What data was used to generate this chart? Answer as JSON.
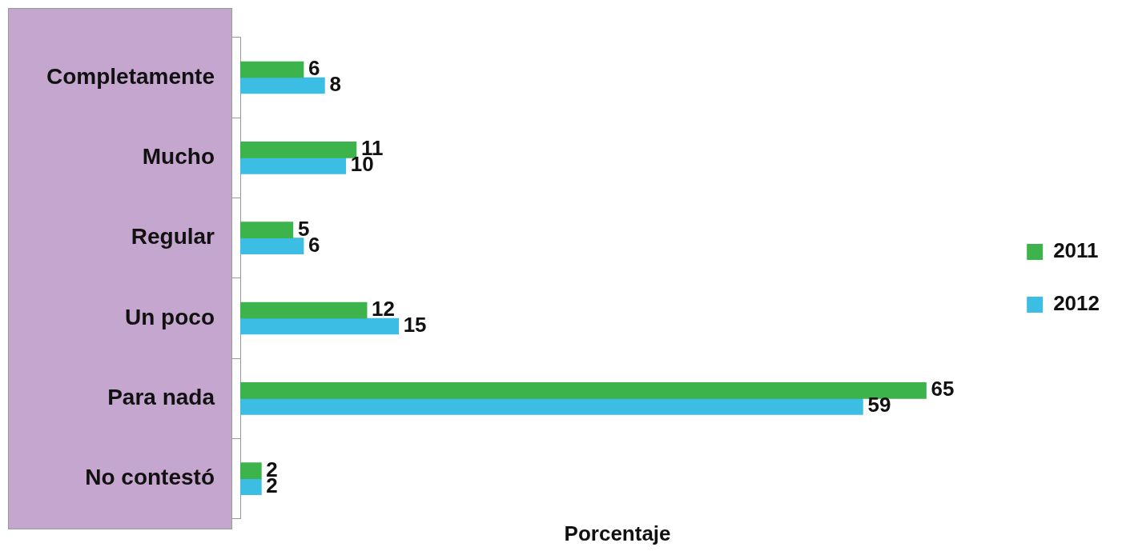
{
  "chart_data": {
    "type": "bar",
    "orientation": "horizontal",
    "xlabel": "Porcentaje",
    "categories": [
      "Completamente",
      "Mucho",
      "Regular",
      "Un poco",
      "Para nada",
      "No contestó"
    ],
    "series": [
      {
        "name": "2011",
        "color": "#3cb44b",
        "values": [
          6,
          11,
          5,
          12,
          65,
          2
        ]
      },
      {
        "name": "2012",
        "color": "#3bbde4",
        "values": [
          8,
          10,
          6,
          15,
          59,
          2
        ]
      }
    ],
    "data_labels": true,
    "legend": "right",
    "grid": false
  }
}
